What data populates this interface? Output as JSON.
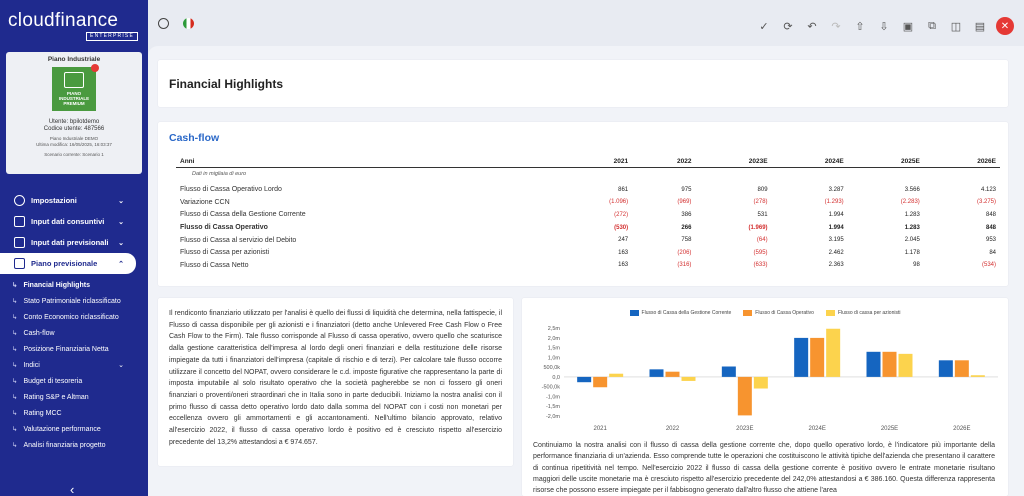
{
  "app": {
    "logo_main": "cloudfinance",
    "logo_sub": "ENTERPRISE"
  },
  "project_card": {
    "title": "Piano Industriale",
    "badge_lines": [
      "PIANO",
      "INDUSTRIALE",
      "PREMIUM"
    ],
    "user_label": "Utente: bpilotdemo",
    "code_label": "Codice utente: 487566",
    "plan_name": "Piano Industriale DEMO",
    "last_modified": "Ultima modifica: 16/05/2025, 16:03:37",
    "scenario": "Scenario corrente: Scenario 1"
  },
  "menu": [
    {
      "label": "Impostazioni",
      "icon": "gear-icon"
    },
    {
      "label": "Input dati consuntivi",
      "icon": "edit-icon"
    },
    {
      "label": "Input dati previsionali",
      "icon": "edit-icon"
    },
    {
      "label": "Piano previsionale",
      "icon": "chart-icon"
    }
  ],
  "submenu": [
    "Financial Highlights",
    "Stato Patrimoniale riclassificato",
    "Conto Economico riclassificato",
    "Cash-flow",
    "Posizione Finanziaria Netta",
    "Indici",
    "Budget di tesoreria",
    "Rating S&P e Altman",
    "Rating MCC",
    "Valutazione performance",
    "Analisi finanziaria progetto"
  ],
  "toolbar": {
    "icons": [
      "check-icon",
      "refresh-icon",
      "undo-icon",
      "redo-icon",
      "upload-icon",
      "download-icon",
      "save-icon",
      "copy-icon",
      "columns-icon",
      "table-icon"
    ],
    "close": "✕"
  },
  "page_title": "Financial Highlights",
  "cashflow": {
    "title": "Cash-flow",
    "headers": [
      "Anni",
      "2021",
      "2022",
      "2023E",
      "2024E",
      "2025E",
      "2026E"
    ],
    "subtitle": "Dati in migliaia di euro",
    "rows": [
      {
        "label": "Flusso di Cassa Operativo Lordo",
        "values": [
          "861",
          "975",
          "809",
          "3.287",
          "3.566",
          "4.123"
        ],
        "bold": false
      },
      {
        "label": "Variazione CCN",
        "values": [
          "(1.096)",
          "(969)",
          "(278)",
          "(1.293)",
          "(2.283)",
          "(3.275)"
        ],
        "bold": false
      },
      {
        "label": "Flusso di Cassa della Gestione Corrente",
        "values": [
          "(272)",
          "386",
          "531",
          "1.994",
          "1.283",
          "848"
        ],
        "bold": false
      },
      {
        "label": "Flusso di Cassa Operativo",
        "values": [
          "(530)",
          "266",
          "(1.969)",
          "1.994",
          "1.283",
          "848"
        ],
        "bold": true
      },
      {
        "label": "Flusso di Cassa al servizio del Debito",
        "values": [
          "247",
          "758",
          "(64)",
          "3.195",
          "2.045",
          "953"
        ],
        "bold": false
      },
      {
        "label": "Flusso di Cassa per azionisti",
        "values": [
          "163",
          "(206)",
          "(595)",
          "2.462",
          "1.178",
          "84"
        ],
        "bold": false
      },
      {
        "label": "Flusso di Cassa Netto",
        "values": [
          "163",
          "(316)",
          "(633)",
          "2.363",
          "98",
          "(534)"
        ],
        "bold": false
      }
    ]
  },
  "text_left": "Il rendiconto finanziario utilizzato per l'analisi è quello dei flussi di liquidità che determina, nella fattispecie, il Flusso di cassa disponibile per gli azionisti e i finanziatori (detto anche Unlevered Free Cash Flow o Free Cash Flow to the Firm). Tale flusso corrisponde al Flusso di cassa operativo, ovvero quello che scaturisce dalla gestione caratteristica dell'impresa al lordo degli oneri finanziari e della restituzione delle risorse impiegate da tutti i finanziatori dell'impresa (capitale di rischio e di terzi). Per calcolare tale flusso occorre utilizzare il concetto del NOPAT, ovvero considerare le c.d. imposte figurative che rappresentano la parte di imposta imputabile al solo risultato operativo che la società pagherebbe se non ci fossero gli oneri finanziari o proventi/oneri straordinari che in Italia sono in parte deducibili. Iniziamo la nostra analisi con il primo flusso di cassa detto operativo lordo dato dalla somma del NOPAT con i costi non monetari per eccellenza ovvero gli ammortamenti e gli accantonamenti. Nell'ultimo bilancio approvato, relativo all'esercizio 2022, il flusso di cassa operativo lordo è positivo ed è cresciuto rispetto all'esercizio precedente del 13,2% attestandosi a € 974.657.",
  "text_right": "Continuiamo la nostra analisi con il flusso di cassa della gestione corrente che, dopo quello operativo lordo, è l'indicatore più importante della performance finanziaria di un'azienda. Esso comprende tutte le operazioni che costituiscono le attività tipiche dell'azienda che presentano il carattere di continua ripetitività nel tempo. Nell'esercizio 2022 il flusso di cassa della gestione corrente è positivo ovvero le entrate monetarie risultano maggiori delle uscite monetarie ma è cresciuto rispetto all'esercizio precedente del 242,0% attestandosi a € 386.160. Questa differenza rappresenta risorse che possono essere impiegate per il fabbisogno generato dall'altro flusso che attiene l'area",
  "chart_data": {
    "type": "bar",
    "categories": [
      "2021",
      "2022",
      "2023E",
      "2024E",
      "2025E",
      "2026E"
    ],
    "series": [
      {
        "name": "Flusso di Cassa della Gestione Corrente",
        "color": "#1565c0",
        "values": [
          -272,
          386,
          531,
          1994,
          1283,
          848
        ]
      },
      {
        "name": "Flusso di Cassa Operativo",
        "color": "#f7942f",
        "values": [
          -530,
          266,
          -1969,
          1994,
          1283,
          848
        ]
      },
      {
        "name": "Flusso di cassa per azionisti",
        "color": "#fcd34d",
        "values": [
          163,
          -206,
          -595,
          2462,
          1178,
          84
        ]
      }
    ],
    "yticks": [
      "2,5m",
      "2,0m",
      "1,5m",
      "1,0m",
      "500,0k",
      "0,0",
      "-500,0k",
      "-1,0m",
      "-1,5m",
      "-2,0m"
    ],
    "ylim": [
      -2000,
      2500
    ],
    "grid": false,
    "legend": "top"
  }
}
